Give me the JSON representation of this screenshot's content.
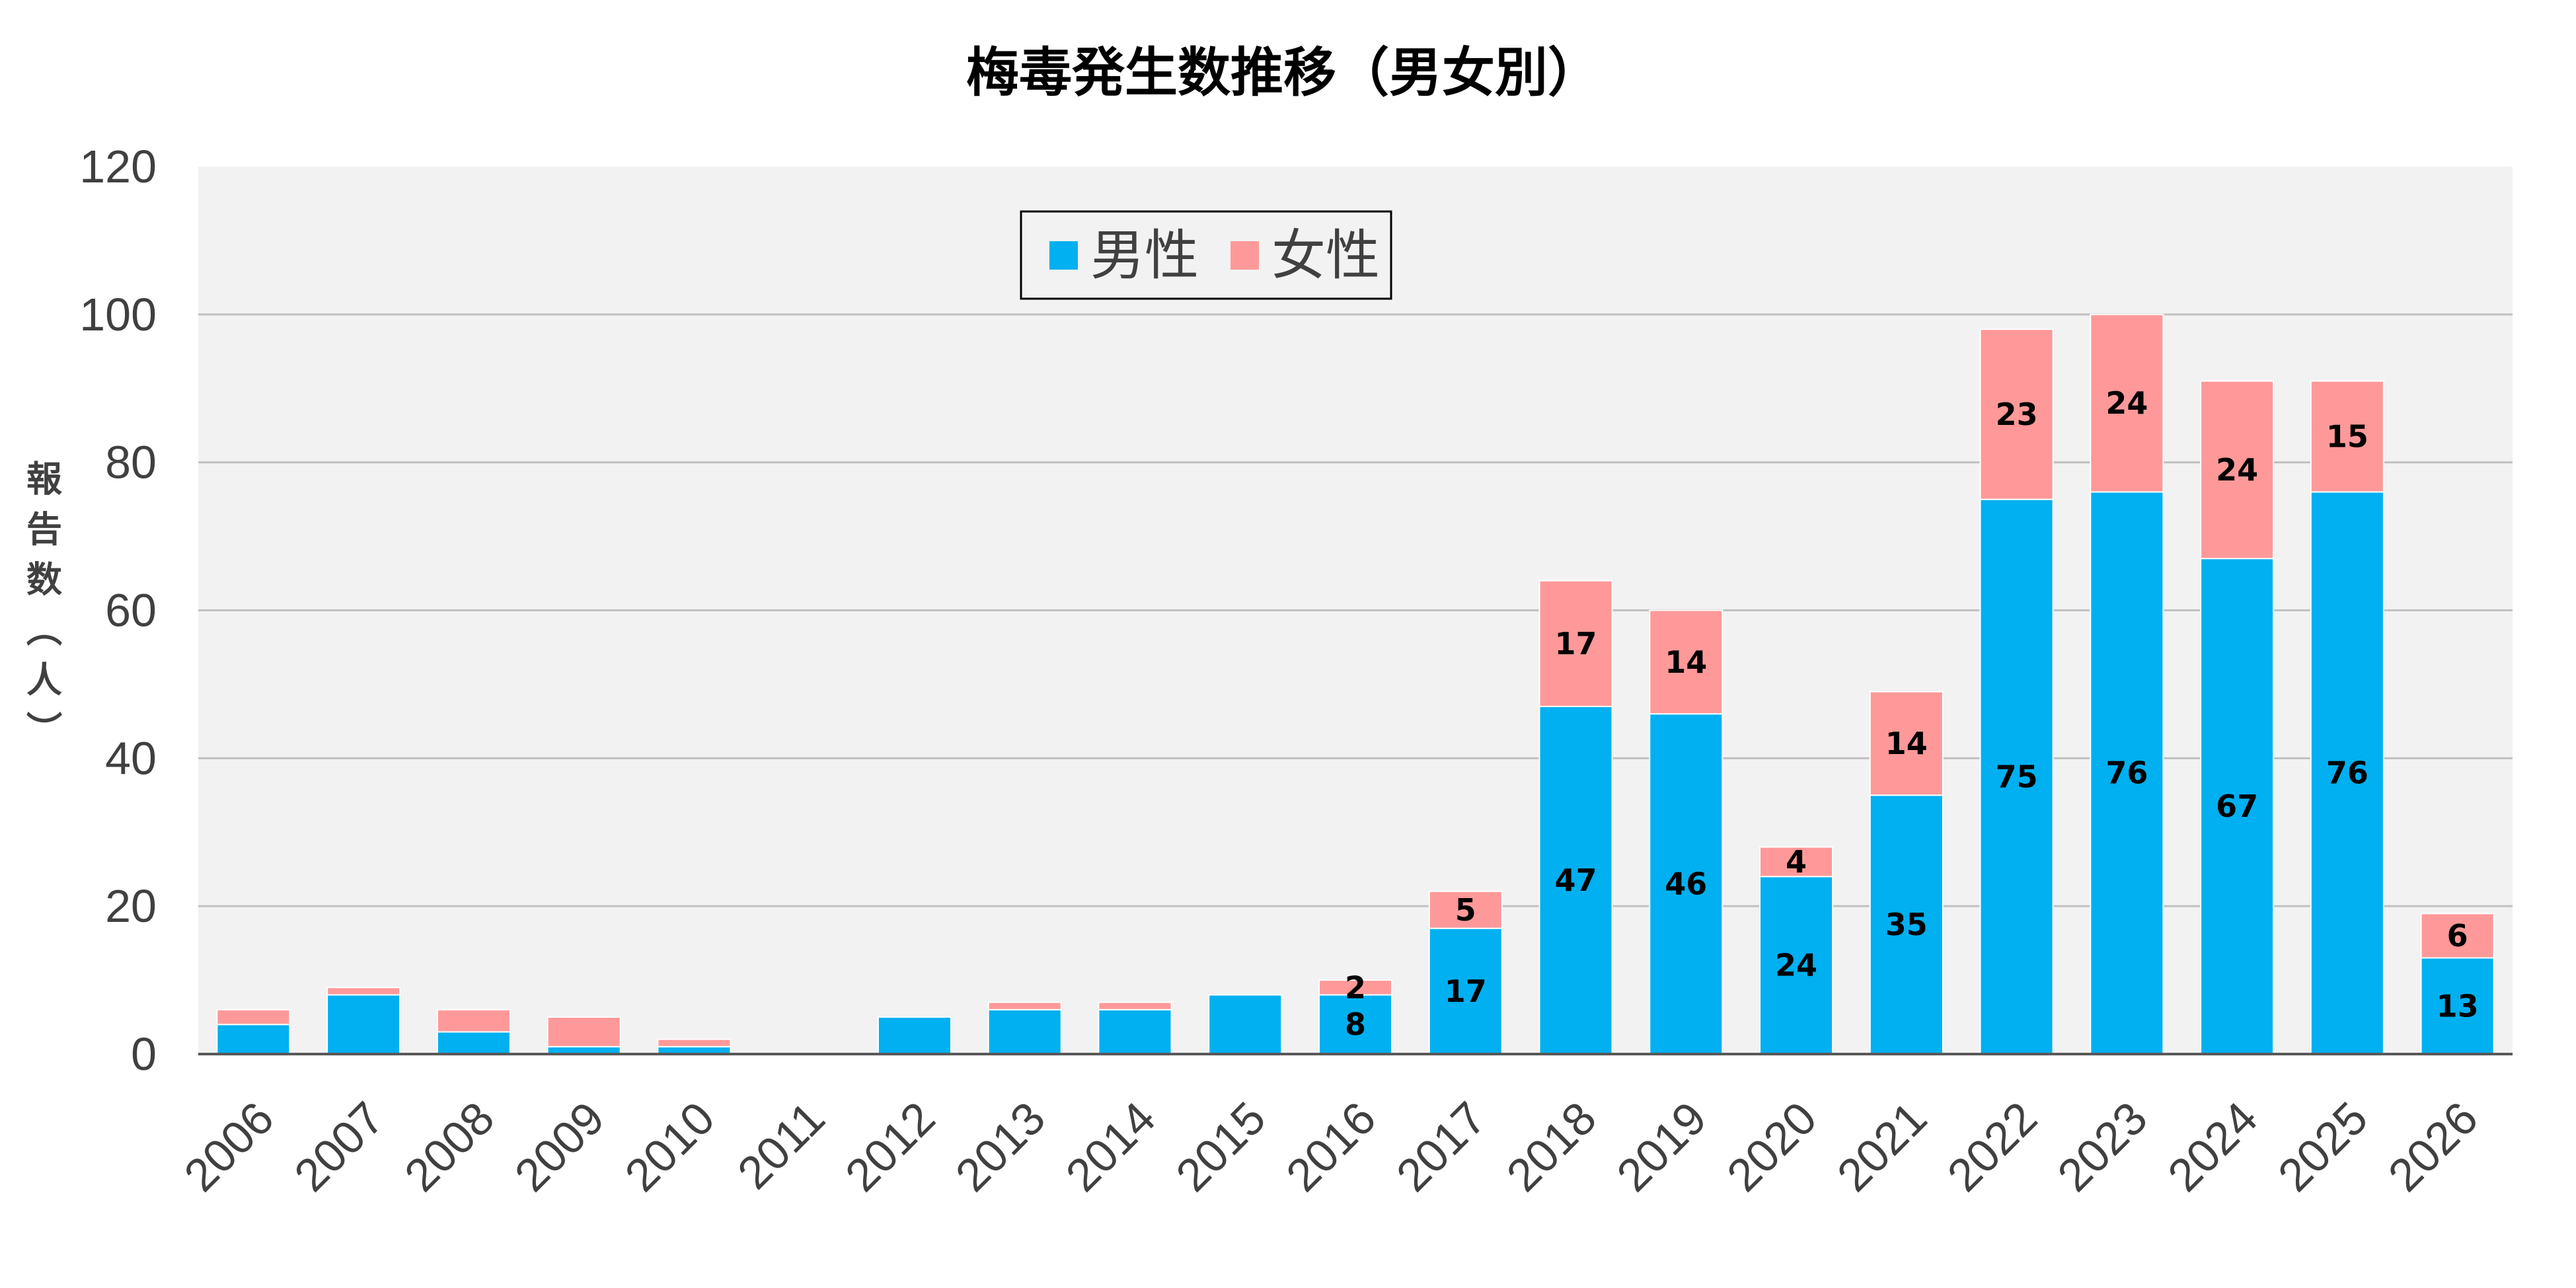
{
  "chart_data": {
    "type": "bar",
    "stacked": true,
    "title": "梅毒発生数推移（男女別）",
    "ylabel": "報告数（人）",
    "ylim": [
      0,
      120
    ],
    "yticks": [
      0,
      20,
      40,
      60,
      80,
      100,
      120
    ],
    "grid": true,
    "legend_position": "top-inside",
    "categories": [
      "2006",
      "2007",
      "2008",
      "2009",
      "2010",
      "2011",
      "2012",
      "2013",
      "2014",
      "2015",
      "2016",
      "2017",
      "2018",
      "2019",
      "2020",
      "2021",
      "2022",
      "2023",
      "2024",
      "2025",
      "2026"
    ],
    "series": [
      {
        "name": "男性",
        "color": "#00B0F0",
        "values": [
          4,
          8,
          3,
          1,
          1,
          0,
          5,
          6,
          6,
          8,
          8,
          17,
          47,
          46,
          24,
          35,
          75,
          76,
          67,
          76,
          13
        ],
        "data_labels": [
          null,
          null,
          null,
          null,
          null,
          null,
          null,
          null,
          null,
          null,
          "8",
          "17",
          "47",
          "46",
          "24",
          "35",
          "75",
          "76",
          "67",
          "76",
          "13"
        ]
      },
      {
        "name": "女性",
        "color": "#FF9999",
        "values": [
          2,
          1,
          3,
          4,
          1,
          0,
          0,
          1,
          1,
          0,
          2,
          5,
          17,
          14,
          4,
          14,
          23,
          24,
          24,
          15,
          6
        ],
        "data_labels": [
          null,
          null,
          null,
          null,
          null,
          null,
          null,
          null,
          null,
          null,
          "2",
          "5",
          "17",
          "14",
          "4",
          "14",
          "23",
          "24",
          "24",
          "15",
          "6"
        ]
      }
    ]
  },
  "colors": {
    "plot_background": "#F2F2F2",
    "gridline": "#C0C0C0",
    "axis": "#595959"
  }
}
